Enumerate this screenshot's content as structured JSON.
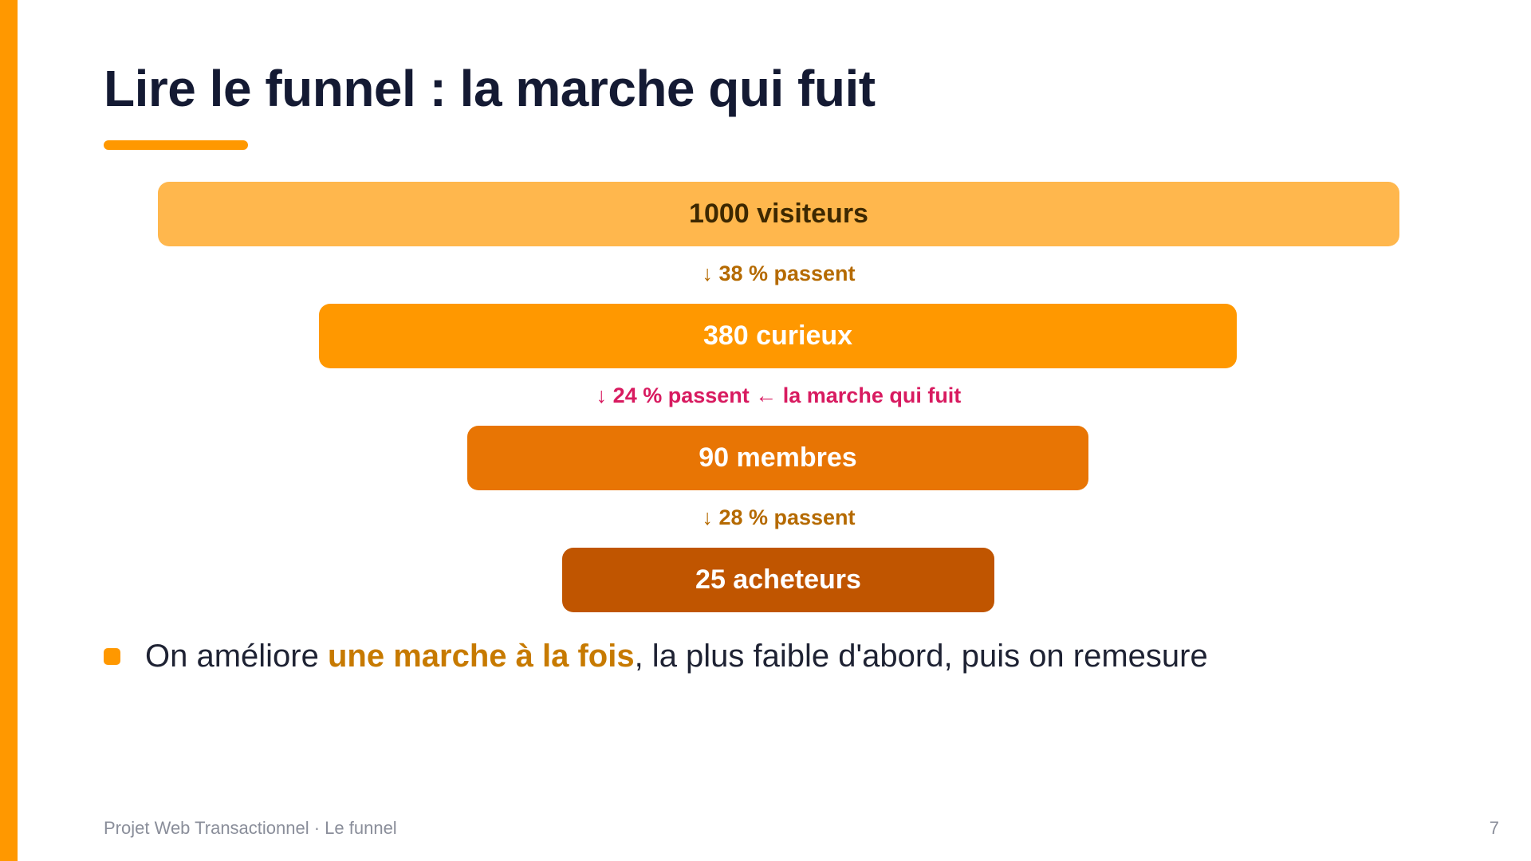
{
  "slide": {
    "title": "Lire le funnel : la marche qui fuit"
  },
  "funnel": {
    "steps": [
      {
        "label": "1000 visiteurs",
        "count": 1000,
        "color": "#FFB74D"
      },
      {
        "label": "380 curieux",
        "count": 380,
        "color": "#FF9800"
      },
      {
        "label": "90 membres",
        "count": 90,
        "color": "#E87504"
      },
      {
        "label": "25 acheteurs",
        "count": 25,
        "color": "#C05500"
      }
    ],
    "rates": [
      {
        "label": "↓ 38 % passent",
        "value_percent": 38
      },
      {
        "label": "↓ 24 % passent ← la marche qui fuit",
        "value_percent": 24,
        "highlight_color": "#D81B60"
      },
      {
        "label": "↓ 28 % passent",
        "value_percent": 28
      }
    ]
  },
  "bullet": {
    "prefix": "On améliore ",
    "highlight": "une marche à la fois",
    "suffix": ", la plus faible d'abord, puis on remesure"
  },
  "footer": {
    "left": "Projet Web Transactionnel · Le funnel",
    "page_number": "7"
  },
  "colors": {
    "accent": "#FF9800",
    "title": "#141A33",
    "leak": "#D81B60",
    "rate": "#B56A00"
  }
}
